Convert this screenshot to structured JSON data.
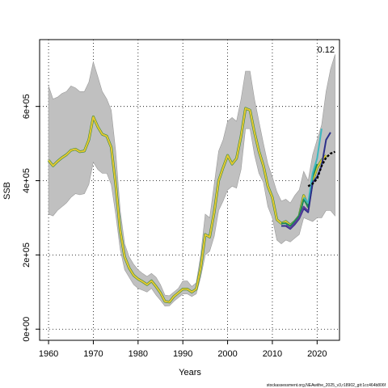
{
  "chart_data": {
    "type": "line",
    "xlabel": "Years",
    "ylabel": "SSB",
    "xlim": [
      1958,
      2025
    ],
    "ylim": [
      -30000,
      780000
    ],
    "x_ticks": [
      1960,
      1970,
      1980,
      1990,
      2000,
      2010,
      2020
    ],
    "y_ticks": [
      0,
      200000,
      400000,
      600000
    ],
    "y_tick_labels": [
      "0e+00",
      "2e+05",
      "4e+05",
      "6e+05"
    ],
    "grid": true,
    "annotation": "0.12",
    "footnote": "stockassessment.org,NEAwithe_2025_v3,r18902_git:1cc464b806f",
    "confidence_band": {
      "x": [
        1960,
        1961,
        1962,
        1963,
        1964,
        1965,
        1966,
        1967,
        1968,
        1969,
        1970,
        1971,
        1972,
        1973,
        1974,
        1975,
        1976,
        1977,
        1978,
        1979,
        1980,
        1981,
        1982,
        1983,
        1984,
        1985,
        1986,
        1987,
        1988,
        1989,
        1990,
        1991,
        1992,
        1993,
        1994,
        1995,
        1996,
        1997,
        1998,
        1999,
        2000,
        2001,
        2002,
        2003,
        2004,
        2005,
        2006,
        2007,
        2008,
        2009,
        2010,
        2011,
        2012,
        2013,
        2014,
        2015,
        2016,
        2017,
        2018,
        2019,
        2020,
        2021,
        2022,
        2023,
        2024
      ],
      "lower": [
        310000,
        305000,
        320000,
        330000,
        340000,
        355000,
        365000,
        362000,
        365000,
        390000,
        450000,
        430000,
        420000,
        420000,
        390000,
        310000,
        215000,
        160000,
        140000,
        120000,
        110000,
        105000,
        100000,
        110000,
        92000,
        78000,
        62000,
        63000,
        75000,
        85000,
        95000,
        95000,
        88000,
        95000,
        140000,
        200000,
        210000,
        250000,
        320000,
        345000,
        375000,
        385000,
        380000,
        430000,
        540000,
        540000,
        470000,
        420000,
        395000,
        330000,
        300000,
        240000,
        230000,
        240000,
        235000,
        245000,
        255000,
        300000,
        295000,
        290000,
        300000,
        300000,
        320000,
        320000,
        305000
      ],
      "upper": [
        655000,
        620000,
        625000,
        635000,
        640000,
        655000,
        650000,
        640000,
        640000,
        665000,
        720000,
        680000,
        640000,
        620000,
        590000,
        480000,
        320000,
        230000,
        195000,
        175000,
        160000,
        150000,
        142000,
        150000,
        140000,
        120000,
        92000,
        90000,
        100000,
        110000,
        130000,
        130000,
        115000,
        125000,
        200000,
        310000,
        300000,
        390000,
        480000,
        510000,
        560000,
        570000,
        560000,
        620000,
        695000,
        695000,
        620000,
        560000,
        500000,
        445000,
        410000,
        370000,
        345000,
        350000,
        340000,
        360000,
        375000,
        425000,
        400000,
        470000,
        510000,
        550000,
        640000,
        700000,
        740000
      ]
    },
    "series": [
      {
        "color": "#e6c832",
        "x": [
          1960,
          1961,
          1962,
          1963,
          1964,
          1965,
          1966,
          1967,
          1968,
          1969,
          1970,
          1971,
          1972,
          1973,
          1974,
          1975,
          1976,
          1977,
          1978,
          1979,
          1980,
          1981,
          1982,
          1983,
          1984,
          1985,
          1986,
          1987,
          1988,
          1989,
          1990,
          1991,
          1992,
          1993,
          1994,
          1995,
          1996,
          1997,
          1998,
          1999,
          2000,
          2001,
          2002,
          2003,
          2004,
          2005,
          2006,
          2007,
          2008,
          2009,
          2010,
          2011,
          2012,
          2013,
          2014,
          2015,
          2016,
          2017,
          2018,
          2019,
          2020,
          2021,
          2022
        ],
        "y": [
          455000,
          440000,
          452000,
          462000,
          470000,
          482000,
          485000,
          478000,
          480000,
          510000,
          572000,
          545000,
          525000,
          520000,
          490000,
          390000,
          265000,
          195000,
          165000,
          145000,
          135000,
          128000,
          120000,
          130000,
          115000,
          98000,
          75000,
          73000,
          88000,
          98000,
          108000,
          108000,
          100000,
          108000,
          165000,
          255000,
          248000,
          315000,
          400000,
          435000,
          468000,
          445000,
          460000,
          520000,
          595000,
          590000,
          530000,
          480000,
          440000,
          385000,
          355000,
          295000,
          285000,
          290000,
          280000,
          290000,
          305000,
          360000,
          330000,
          400000,
          435000,
          455000,
          468000
        ]
      },
      {
        "color": "#1a8a5a",
        "x": [
          2012,
          2013,
          2014,
          2015,
          2016,
          2017,
          2018,
          2019,
          2020
        ],
        "y": [
          285000,
          285000,
          278000,
          290000,
          305000,
          350000,
          330000,
          410000,
          445000
        ]
      },
      {
        "color": "#3cb8c0",
        "x": [
          2017,
          2018,
          2019,
          2020,
          2021
        ],
        "y": [
          355000,
          340000,
          420000,
          460000,
          540000
        ]
      },
      {
        "color": "#2c2f8a",
        "x": [
          2012,
          2013,
          2014,
          2015,
          2016,
          2017,
          2018,
          2019,
          2020,
          2021,
          2022,
          2023
        ],
        "y": [
          278000,
          278000,
          270000,
          282000,
          298000,
          325000,
          315000,
          395000,
          410000,
          440000,
          510000,
          530000
        ]
      },
      {
        "color": "#5b3a9a",
        "x": [
          2013,
          2014,
          2015,
          2016,
          2017,
          2018
        ],
        "y": [
          280000,
          272000,
          285000,
          300000,
          330000,
          318000
        ]
      },
      {
        "color": "#000000",
        "dash": true,
        "x": [
          2018,
          2019,
          2020,
          2021,
          2022,
          2023,
          2024
        ],
        "y": [
          385000,
          392000,
          405000,
          440000,
          462000,
          473000,
          478000
        ]
      }
    ]
  }
}
